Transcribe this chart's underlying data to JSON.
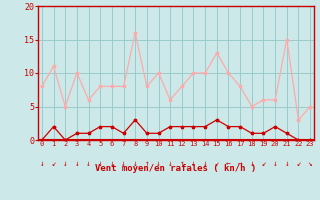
{
  "hours": [
    0,
    1,
    2,
    3,
    4,
    5,
    6,
    7,
    8,
    9,
    10,
    11,
    12,
    13,
    14,
    15,
    16,
    17,
    18,
    19,
    20,
    21,
    22,
    23
  ],
  "avg_wind": [
    0,
    2,
    0,
    1,
    1,
    2,
    2,
    1,
    3,
    1,
    1,
    2,
    2,
    2,
    2,
    3,
    2,
    2,
    1,
    1,
    2,
    1,
    0,
    0
  ],
  "gust_wind": [
    8,
    11,
    5,
    10,
    6,
    8,
    8,
    8,
    16,
    8,
    10,
    6,
    8,
    10,
    10,
    13,
    10,
    8,
    5,
    6,
    6,
    15,
    3,
    5
  ],
  "avg_color": "#cc0000",
  "gust_color": "#ffaaaa",
  "bg_color": "#cce8e8",
  "grid_color": "#99cccc",
  "axis_color": "#cc0000",
  "xlabel": "Vent moyen/en rafales ( kn/h )",
  "ylim": [
    0,
    20
  ],
  "yticks": [
    0,
    5,
    10,
    15,
    20
  ],
  "arrow_symbols": [
    "↓",
    "↙",
    "↓",
    "↓",
    "↓",
    "↓",
    "↓",
    "↓",
    "↓",
    "↑",
    "↓",
    "↓",
    "↑",
    "↓",
    "↓",
    "↙",
    "←",
    "→",
    "↓",
    "↙",
    "↓",
    "↓",
    "↙",
    "↘"
  ]
}
